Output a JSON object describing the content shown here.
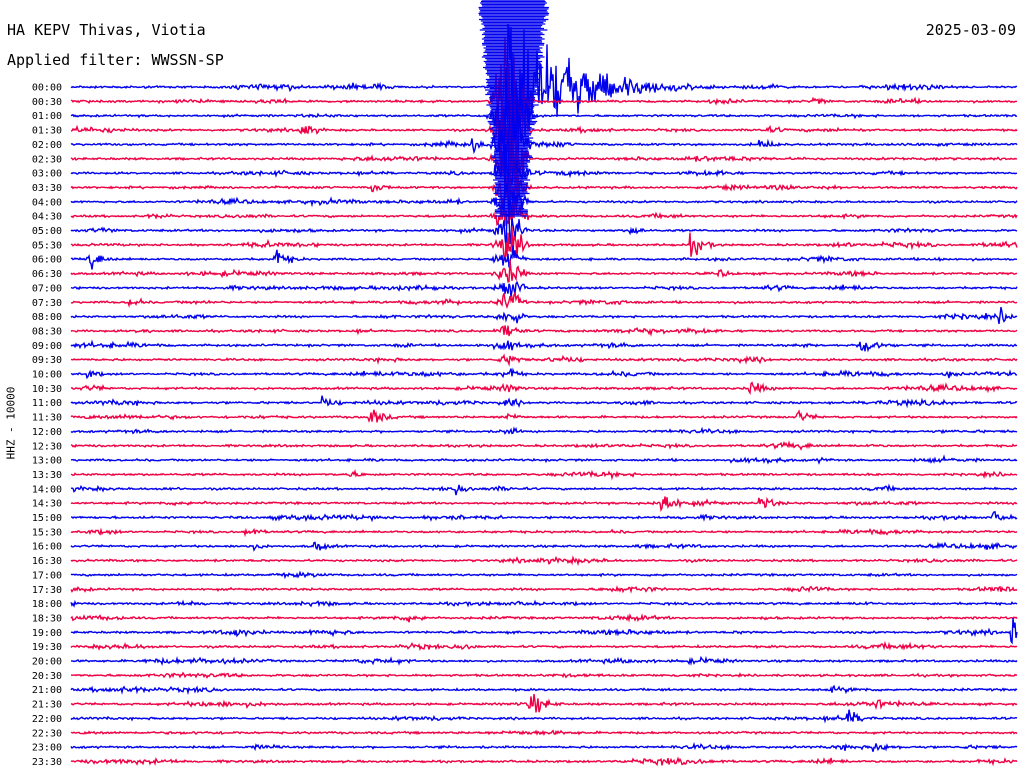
{
  "header": {
    "station": "HA KEPV Thivas, Viotia",
    "filter": "Applied filter: WWSSN-SP",
    "date": "2025-03-09"
  },
  "channel_label": "HHZ - 10000",
  "colors": {
    "even_row": "#0000ee",
    "odd_row": "#ee0044",
    "background": "#ffffff"
  },
  "chart_data": {
    "type": "line",
    "title": "HA KEPV Thivas, Viotia",
    "subtitle": "Applied filter: WWSSN-SP",
    "ylabel": "HHZ - 10000",
    "row_interval_minutes": 30,
    "time_labels": [
      "00:00",
      "00:30",
      "01:00",
      "01:30",
      "02:00",
      "02:30",
      "03:00",
      "03:30",
      "04:00",
      "04:30",
      "05:00",
      "05:30",
      "06:00",
      "06:30",
      "07:00",
      "07:30",
      "08:00",
      "08:30",
      "09:00",
      "09:30",
      "10:00",
      "10:30",
      "11:00",
      "11:30",
      "12:00",
      "12:30",
      "13:00",
      "13:30",
      "14:00",
      "14:30",
      "15:00",
      "15:30",
      "16:00",
      "16:30",
      "17:00",
      "17:30",
      "18:00",
      "18:30",
      "19:00",
      "19:30",
      "20:00",
      "20:30",
      "21:00",
      "21:30",
      "22:00",
      "22:30",
      "23:00",
      "23:30"
    ],
    "main_event": {
      "start_row": 0,
      "minute_in_row": 13.8,
      "peak_amplitude_rows": 6.0,
      "coda_rows": 25
    },
    "local_events": [
      {
        "row": 1,
        "minute": 23.5,
        "amp": 0.35
      },
      {
        "row": 3,
        "minute": 7.2,
        "amp": 0.8
      },
      {
        "row": 4,
        "minute": 12.7,
        "amp": 0.7
      },
      {
        "row": 4,
        "minute": 21.8,
        "amp": 0.55
      },
      {
        "row": 7,
        "minute": 9.5,
        "amp": 0.55
      },
      {
        "row": 9,
        "minute": 13.4,
        "amp": 1.1
      },
      {
        "row": 10,
        "minute": 17.7,
        "amp": 0.5
      },
      {
        "row": 11,
        "minute": 19.6,
        "amp": 1.0
      },
      {
        "row": 12,
        "minute": 0.5,
        "amp": 0.9
      },
      {
        "row": 12,
        "minute": 6.4,
        "amp": 0.9
      },
      {
        "row": 13,
        "minute": 20.5,
        "amp": 0.45
      },
      {
        "row": 15,
        "minute": 1.8,
        "amp": 0.5
      },
      {
        "row": 16,
        "minute": 29.4,
        "amp": 0.8
      },
      {
        "row": 18,
        "minute": 25.0,
        "amp": 1.5
      },
      {
        "row": 20,
        "minute": 0.5,
        "amp": 0.4
      },
      {
        "row": 20,
        "minute": 27.7,
        "amp": 0.4
      },
      {
        "row": 21,
        "minute": 21.5,
        "amp": 0.7
      },
      {
        "row": 22,
        "minute": 7.9,
        "amp": 0.6
      },
      {
        "row": 23,
        "minute": 9.4,
        "amp": 0.9
      },
      {
        "row": 23,
        "minute": 23.0,
        "amp": 0.6
      },
      {
        "row": 28,
        "minute": 12.2,
        "amp": 0.5
      },
      {
        "row": 29,
        "minute": 18.7,
        "amp": 1.2
      },
      {
        "row": 29,
        "minute": 21.8,
        "amp": 0.7
      },
      {
        "row": 30,
        "minute": 29.2,
        "amp": 0.55
      },
      {
        "row": 31,
        "minute": 5.5,
        "amp": 0.5
      },
      {
        "row": 32,
        "minute": 7.7,
        "amp": 0.5
      },
      {
        "row": 37,
        "minute": 10.7,
        "amp": 0.35
      },
      {
        "row": 38,
        "minute": 5.2,
        "amp": 0.5
      },
      {
        "row": 38,
        "minute": 29.8,
        "amp": 1.5
      },
      {
        "row": 43,
        "minute": 14.5,
        "amp": 1.2
      },
      {
        "row": 43,
        "minute": 25.5,
        "amp": 0.5
      },
      {
        "row": 44,
        "minute": 24.6,
        "amp": 0.9
      },
      {
        "row": 46,
        "minute": 25.4,
        "amp": 0.55
      }
    ]
  }
}
